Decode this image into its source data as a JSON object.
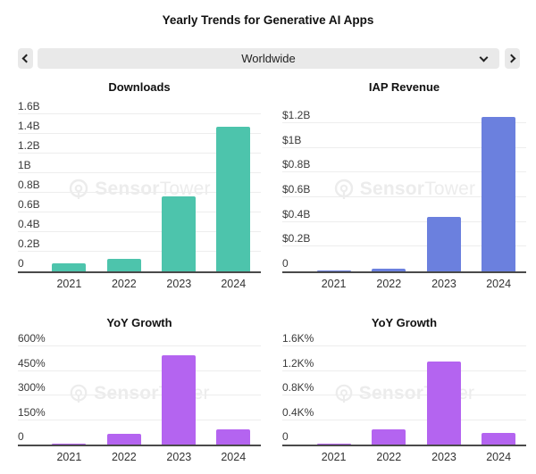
{
  "page": {
    "title": "Yearly Trends for Generative AI Apps"
  },
  "controls": {
    "prev_icon": "chevron-left-icon",
    "next_icon": "chevron-right-icon",
    "region_selector": {
      "value": "Worldwide",
      "dropdown_icon": "chevron-down-icon"
    }
  },
  "watermark": {
    "logo": "sensor-tower-logo",
    "brand_bold": "Sensor",
    "brand_light": "Tower"
  },
  "theme": {
    "downloads_color": "#4dc4ac",
    "revenue_color": "#6b80de",
    "growth_color": "#b464f0",
    "gridline_color": "#ededed",
    "axis_color": "#4a4a4a"
  },
  "chart_data": [
    {
      "type": "bar",
      "title": "Downloads",
      "categories": [
        "2021",
        "2022",
        "2023",
        "2024"
      ],
      "values": [
        0.08,
        0.13,
        0.76,
        1.47
      ],
      "unit": "B downloads",
      "ticks": [
        "0",
        "0.2B",
        "0.4B",
        "0.6B",
        "0.8B",
        "1B",
        "1.2B",
        "1.4B",
        "1.6B"
      ],
      "tick_values": [
        0,
        0.2,
        0.4,
        0.6,
        0.8,
        1.0,
        1.2,
        1.4,
        1.6
      ],
      "ylim": [
        0,
        1.6
      ],
      "grid": true,
      "color": "#4dc4ac"
    },
    {
      "type": "bar",
      "title": "IAP Revenue",
      "categories": [
        "2021",
        "2022",
        "2023",
        "2024"
      ],
      "values": [
        0.01,
        0.02,
        0.44,
        1.25
      ],
      "unit": "$B",
      "ticks": [
        "0",
        "$0.2B",
        "$0.4B",
        "$0.6B",
        "$0.8B",
        "$1B",
        "$1.2B"
      ],
      "tick_values": [
        0,
        0.2,
        0.4,
        0.6,
        0.8,
        1.0,
        1.2
      ],
      "ylim": [
        0,
        1.3
      ],
      "grid": true,
      "color": "#6b80de"
    },
    {
      "type": "bar",
      "title": "YoY Growth",
      "categories": [
        "2021",
        "2022",
        "2023",
        "2024"
      ],
      "values": [
        5,
        65,
        545,
        92
      ],
      "unit": "% downloads growth",
      "ticks": [
        "0",
        "150%",
        "300%",
        "450%",
        "600%"
      ],
      "tick_values": [
        0,
        150,
        300,
        450,
        600
      ],
      "ylim": [
        0,
        640
      ],
      "grid": true,
      "color": "#b464f0"
    },
    {
      "type": "bar",
      "title": "YoY Growth",
      "categories": [
        "2021",
        "2022",
        "2023",
        "2024"
      ],
      "values": [
        20,
        250,
        1350,
        190
      ],
      "unit": "% revenue growth",
      "ticks": [
        "0",
        "0.4K%",
        "0.8K%",
        "1.2K%",
        "1.6K%"
      ],
      "tick_values": [
        0,
        400,
        800,
        1200,
        1600
      ],
      "ylim": [
        0,
        1700
      ],
      "grid": true,
      "color": "#b464f0"
    }
  ]
}
